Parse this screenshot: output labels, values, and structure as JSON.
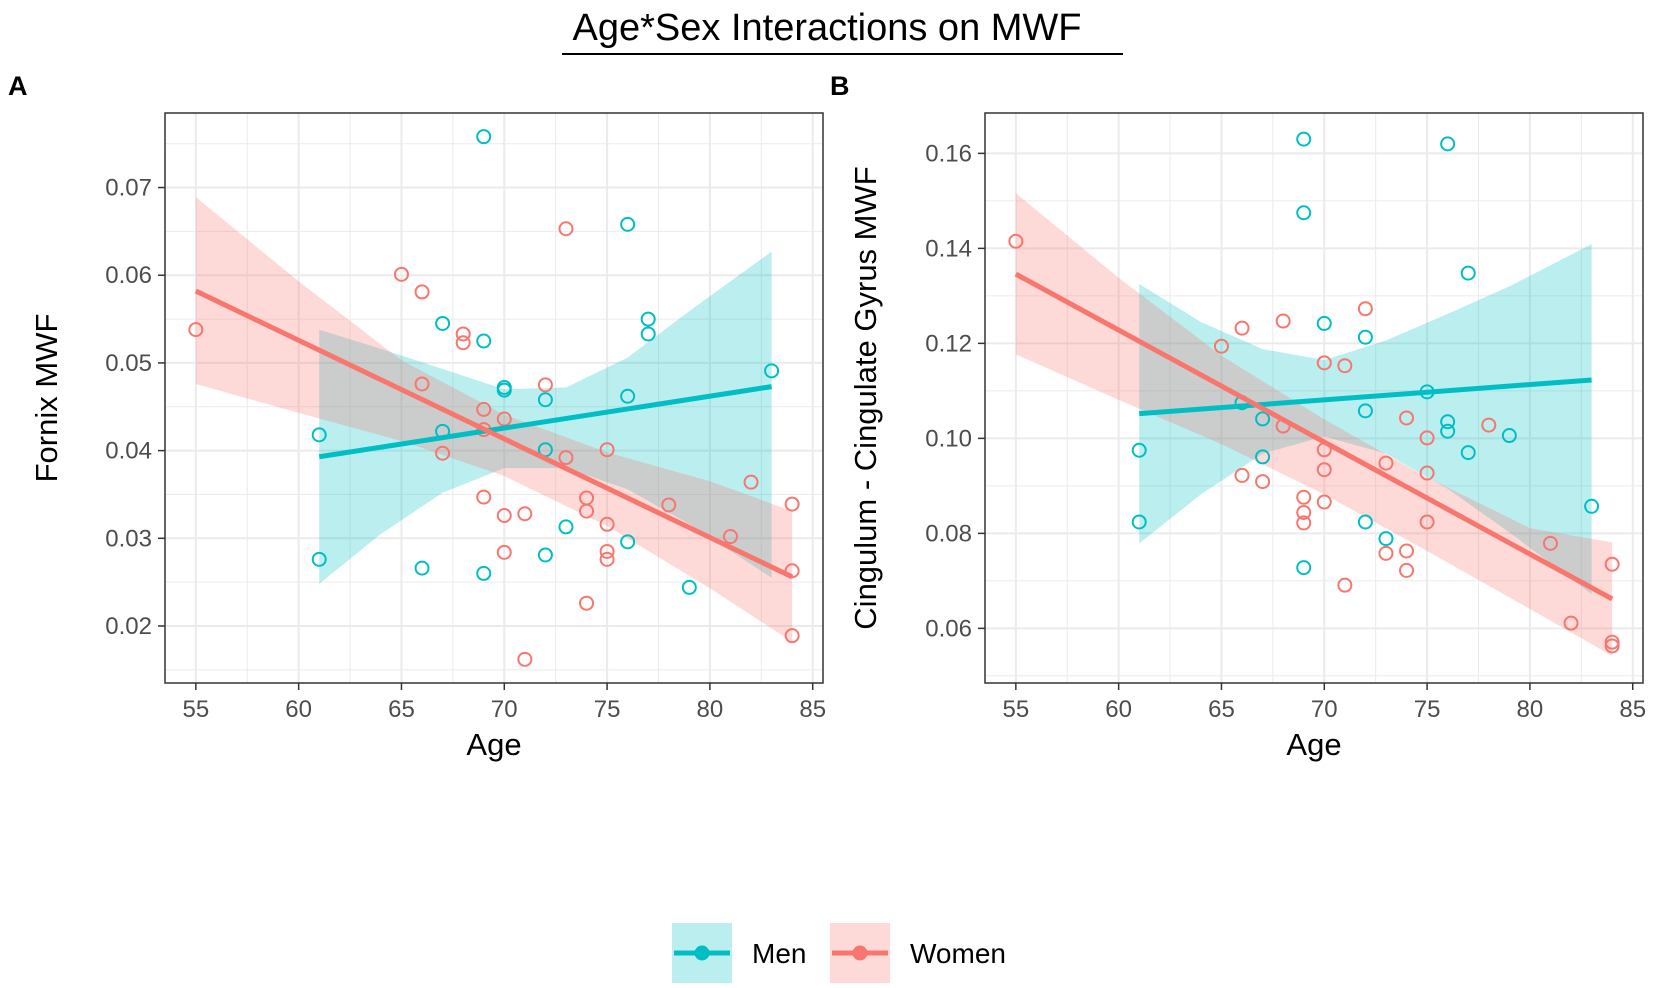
{
  "title": "Age*Sex Interactions on MWF",
  "colors": {
    "men": "#00BFC4",
    "women": "#F8766D",
    "band_men": "#00BFC4",
    "band_women": "#F8766D",
    "grid": "#EBEBEB",
    "axis_text": "#4D4D4D"
  },
  "legend": {
    "items": [
      {
        "key": "men",
        "label": "Men"
      },
      {
        "key": "women",
        "label": "Women"
      }
    ]
  },
  "chart_data": [
    {
      "panel_label": "A",
      "type": "scatter",
      "xlabel": "Age",
      "ylabel": "Fornix MWF",
      "xlim": [
        53.5,
        85.5
      ],
      "ylim": [
        0.0135,
        0.0785
      ],
      "xticks": [
        55,
        60,
        65,
        70,
        75,
        80,
        85
      ],
      "xtick_labels": [
        "55",
        "60",
        "65",
        "70",
        "75",
        "80",
        "85"
      ],
      "yticks": [
        0.02,
        0.03,
        0.04,
        0.05,
        0.06,
        0.07
      ],
      "ytick_labels": [
        "0.02",
        "0.03",
        "0.04",
        "0.05",
        "0.06",
        "0.07"
      ],
      "series": [
        {
          "name": "Men",
          "key": "men",
          "points": [
            [
              61,
              0.0418
            ],
            [
              61,
              0.0276
            ],
            [
              66,
              0.0266
            ],
            [
              67,
              0.0545
            ],
            [
              67,
              0.0422
            ],
            [
              69,
              0.0758
            ],
            [
              69,
              0.0525
            ],
            [
              69,
              0.026
            ],
            [
              70,
              0.0472
            ],
            [
              70,
              0.0469
            ],
            [
              72,
              0.0458
            ],
            [
              72,
              0.0401
            ],
            [
              72,
              0.0281
            ],
            [
              73,
              0.0313
            ],
            [
              76,
              0.0658
            ],
            [
              76,
              0.0462
            ],
            [
              76,
              0.0296
            ],
            [
              77,
              0.055
            ],
            [
              77,
              0.0533
            ],
            [
              79,
              0.0244
            ],
            [
              83,
              0.0491
            ]
          ],
          "fit": {
            "x": [
              61,
              83
            ],
            "y": [
              0.0393,
              0.0473
            ]
          },
          "band": {
            "x": [
              61,
              64,
              67,
              70,
              73,
              76,
              79,
              83
            ],
            "lower": [
              0.0248,
              0.0305,
              0.0352,
              0.038,
              0.038,
              0.0356,
              0.0316,
              0.0255
            ],
            "upper": [
              0.0538,
              0.0516,
              0.0493,
              0.047,
              0.0472,
              0.0506,
              0.0559,
              0.0627
            ]
          }
        },
        {
          "name": "Women",
          "key": "women",
          "points": [
            [
              55,
              0.0538
            ],
            [
              65,
              0.0601
            ],
            [
              66,
              0.0581
            ],
            [
              66,
              0.0476
            ],
            [
              67,
              0.0397
            ],
            [
              68,
              0.0533
            ],
            [
              68,
              0.0523
            ],
            [
              69,
              0.0447
            ],
            [
              69,
              0.0424
            ],
            [
              69,
              0.0347
            ],
            [
              70,
              0.0436
            ],
            [
              70,
              0.0326
            ],
            [
              70,
              0.0284
            ],
            [
              71,
              0.0328
            ],
            [
              71,
              0.0162
            ],
            [
              72,
              0.0475
            ],
            [
              73,
              0.0653
            ],
            [
              73,
              0.0392
            ],
            [
              74,
              0.0346
            ],
            [
              74,
              0.0331
            ],
            [
              74,
              0.0226
            ],
            [
              75,
              0.0401
            ],
            [
              75,
              0.0316
            ],
            [
              75,
              0.0285
            ],
            [
              75,
              0.0276
            ],
            [
              78,
              0.0338
            ],
            [
              81,
              0.0302
            ],
            [
              82,
              0.0364
            ],
            [
              84,
              0.0339
            ],
            [
              84,
              0.0263
            ],
            [
              84,
              0.0189
            ]
          ],
          "fit": {
            "x": [
              55,
              84
            ],
            "y": [
              0.0582,
              0.0256
            ]
          },
          "band": {
            "x": [
              55,
              60,
              65,
              70,
              75,
              80,
              84
            ],
            "lower": [
              0.0476,
              0.0443,
              0.0411,
              0.0371,
              0.0314,
              0.0243,
              0.0182
            ],
            "upper": [
              0.0689,
              0.0593,
              0.0503,
              0.0441,
              0.0398,
              0.0365,
              0.0331
            ]
          }
        }
      ]
    },
    {
      "panel_label": "B",
      "type": "scatter",
      "xlabel": "Age",
      "ylabel": "Cingulum - Cingulate Gyrus MWF",
      "xlim": [
        53.5,
        85.5
      ],
      "ylim": [
        0.0485,
        0.1685
      ],
      "xticks": [
        55,
        60,
        65,
        70,
        75,
        80,
        85
      ],
      "xtick_labels": [
        "55",
        "60",
        "65",
        "70",
        "75",
        "80",
        "85"
      ],
      "yticks": [
        0.06,
        0.08,
        0.1,
        0.12,
        0.14,
        0.16
      ],
      "ytick_labels": [
        "0.06",
        "0.08",
        "0.10",
        "0.12",
        "0.14",
        "0.16"
      ],
      "series": [
        {
          "name": "Men",
          "key": "men",
          "points": [
            [
              61,
              0.0975
            ],
            [
              61,
              0.0824
            ],
            [
              66,
              0.1075
            ],
            [
              67,
              0.1041
            ],
            [
              67,
              0.0961
            ],
            [
              69,
              0.163
            ],
            [
              69,
              0.1475
            ],
            [
              69,
              0.0728
            ],
            [
              70,
              0.1242
            ],
            [
              72,
              0.1213
            ],
            [
              72,
              0.1058
            ],
            [
              72,
              0.0824
            ],
            [
              73,
              0.0789
            ],
            [
              75,
              0.1098
            ],
            [
              76,
              0.162
            ],
            [
              76,
              0.1035
            ],
            [
              76,
              0.1015
            ],
            [
              77,
              0.1348
            ],
            [
              77,
              0.097
            ],
            [
              79,
              0.1006
            ],
            [
              83,
              0.0857
            ]
          ],
          "fit": {
            "x": [
              61,
              83
            ],
            "y": [
              0.1052,
              0.1123
            ]
          },
          "band": {
            "x": [
              61,
              64,
              67,
              70,
              73,
              76,
              79,
              83
            ],
            "lower": [
              0.0779,
              0.0882,
              0.0968,
              0.1004,
              0.0968,
              0.0894,
              0.0802,
              0.0672
            ],
            "upper": [
              0.1325,
              0.1245,
              0.1188,
              0.1165,
              0.1206,
              0.1262,
              0.132,
              0.1409
            ]
          }
        },
        {
          "name": "Women",
          "key": "women",
          "points": [
            [
              55,
              0.1415
            ],
            [
              65,
              0.1194
            ],
            [
              66,
              0.1232
            ],
            [
              66,
              0.0922
            ],
            [
              67,
              0.0909
            ],
            [
              68,
              0.1247
            ],
            [
              68,
              0.1026
            ],
            [
              69,
              0.0876
            ],
            [
              69,
              0.0844
            ],
            [
              69,
              0.0822
            ],
            [
              70,
              0.1159
            ],
            [
              70,
              0.0976
            ],
            [
              70,
              0.0934
            ],
            [
              70,
              0.0866
            ],
            [
              71,
              0.1153
            ],
            [
              71,
              0.0691
            ],
            [
              72,
              0.1273
            ],
            [
              73,
              0.0948
            ],
            [
              73,
              0.0758
            ],
            [
              74,
              0.1043
            ],
            [
              74,
              0.0763
            ],
            [
              74,
              0.0722
            ],
            [
              75,
              0.1001
            ],
            [
              75,
              0.0927
            ],
            [
              75,
              0.0824
            ],
            [
              78,
              0.1028
            ],
            [
              81,
              0.0779
            ],
            [
              82,
              0.0611
            ],
            [
              84,
              0.0735
            ],
            [
              84,
              0.0571
            ],
            [
              84,
              0.0563
            ]
          ],
          "fit": {
            "x": [
              55,
              84
            ],
            "y": [
              0.1346,
              0.0662
            ]
          },
          "band": {
            "x": [
              55,
              60,
              65,
              70,
              75,
              80,
              84
            ],
            "lower": [
              0.1177,
              0.1081,
              0.0988,
              0.0882,
              0.0763,
              0.0641,
              0.0542
            ],
            "upper": [
              0.1516,
              0.1338,
              0.1174,
              0.104,
              0.0918,
              0.0811,
              0.0781
            ]
          }
        }
      ]
    }
  ]
}
